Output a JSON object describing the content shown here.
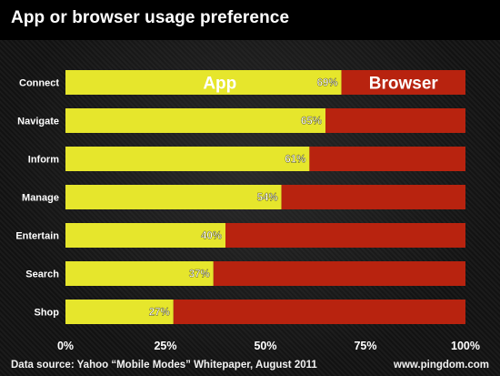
{
  "title": "App or browser usage preference",
  "footer": {
    "source": "Data source: Yahoo “Mobile Modes” Whitepaper, August 2011",
    "site": "www.pingdom.com"
  },
  "colors": {
    "app": "#e6e62c",
    "browser": "#b8230f",
    "axis_text": "#ffffff"
  },
  "chart_data": {
    "type": "bar",
    "orientation": "horizontal",
    "stacked": true,
    "categories": [
      "Connect",
      "Navigate",
      "Inform",
      "Manage",
      "Entertain",
      "Search",
      "Shop"
    ],
    "series": [
      {
        "name": "App",
        "values": [
          69,
          65,
          61,
          54,
          40,
          37,
          27
        ]
      },
      {
        "name": "Browser",
        "values": [
          31,
          35,
          39,
          46,
          60,
          63,
          73
        ]
      }
    ],
    "data_labels": [
      "69%",
      "65%",
      "61%",
      "54%",
      "40%",
      "37%",
      "27%"
    ],
    "x_ticks": [
      "0%",
      "25%",
      "50%",
      "75%",
      "100%"
    ],
    "xlim": [
      0,
      100
    ],
    "grid": false,
    "legend": "inside first bar"
  }
}
